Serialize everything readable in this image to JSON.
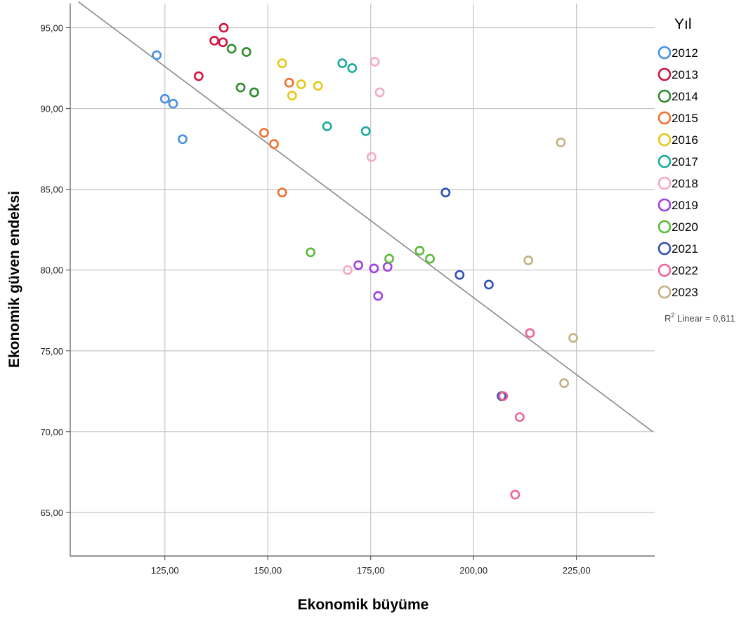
{
  "chart_data": {
    "type": "scatter",
    "xlabel": "Ekonomik büyüme",
    "ylabel": "Ekonomik güven endeksi",
    "xlim": [
      102,
      244
    ],
    "ylim": [
      62.3,
      96.5
    ],
    "xticks": [
      125,
      150,
      175,
      200,
      225
    ],
    "xtick_labels": [
      "125,00",
      "150,00",
      "175,00",
      "200,00",
      "225,00"
    ],
    "yticks": [
      65,
      70,
      75,
      80,
      85,
      90,
      95
    ],
    "ytick_labels": [
      "65,00",
      "70,00",
      "75,00",
      "80,00",
      "85,00",
      "90,00",
      "95,00"
    ],
    "grid": true,
    "legend": {
      "title": "Yıl",
      "position": "right"
    },
    "fit_line": {
      "type": "linear",
      "label_prefix": "R",
      "label_sup": "2",
      "label_rest": " Linear = 0,611",
      "start": [
        104,
        96.6
      ],
      "end": [
        243.5,
        70
      ]
    },
    "series": [
      {
        "name": "2012",
        "color": "#4a90e2",
        "points": [
          [
            123,
            93.3
          ],
          [
            125,
            90.6
          ],
          [
            127,
            90.3
          ],
          [
            129.3,
            88.1
          ]
        ]
      },
      {
        "name": "2013",
        "color": "#d0123d",
        "points": [
          [
            133.2,
            92
          ],
          [
            137,
            94.2
          ],
          [
            139.1,
            94.1
          ],
          [
            139.3,
            95
          ]
        ]
      },
      {
        "name": "2014",
        "color": "#2e8b2e",
        "points": [
          [
            141.2,
            93.7
          ],
          [
            143.4,
            91.3
          ],
          [
            144.8,
            93.5
          ],
          [
            146.7,
            91
          ]
        ]
      },
      {
        "name": "2015",
        "color": "#f07030",
        "points": [
          [
            149.1,
            88.5
          ],
          [
            151.5,
            87.8
          ],
          [
            153.5,
            84.8
          ],
          [
            155.2,
            91.6
          ]
        ]
      },
      {
        "name": "2016",
        "color": "#e6c81a",
        "points": [
          [
            153.5,
            92.8
          ],
          [
            155.9,
            90.8
          ],
          [
            158.1,
            91.5
          ],
          [
            162.2,
            91.4
          ]
        ]
      },
      {
        "name": "2017",
        "color": "#1aab9b",
        "points": [
          [
            164.4,
            88.9
          ],
          [
            168.1,
            92.8
          ],
          [
            170.5,
            92.5
          ],
          [
            173.8,
            88.6
          ]
        ]
      },
      {
        "name": "2018",
        "color": "#f5a9c8",
        "points": [
          [
            169.4,
            80
          ],
          [
            175.2,
            87
          ],
          [
            176,
            92.9
          ],
          [
            177.2,
            91
          ]
        ]
      },
      {
        "name": "2019",
        "color": "#a040e0",
        "points": [
          [
            172,
            80.3
          ],
          [
            175.8,
            80.1
          ],
          [
            176.8,
            78.4
          ],
          [
            179.1,
            80.2
          ]
        ]
      },
      {
        "name": "2020",
        "color": "#5abb3a",
        "points": [
          [
            160.4,
            81.1
          ],
          [
            179.5,
            80.7
          ],
          [
            186.9,
            81.2
          ],
          [
            189.4,
            80.7
          ]
        ]
      },
      {
        "name": "2021",
        "color": "#3050b0",
        "points": [
          [
            193.2,
            84.8
          ],
          [
            196.6,
            79.7
          ],
          [
            203.7,
            79.1
          ],
          [
            206.8,
            72.2
          ]
        ]
      },
      {
        "name": "2022",
        "color": "#f06595",
        "points": [
          [
            207.2,
            72.2
          ],
          [
            210.1,
            66.1
          ],
          [
            211.2,
            70.9
          ],
          [
            213.7,
            76.1
          ]
        ]
      },
      {
        "name": "2023",
        "color": "#c2b280",
        "points": [
          [
            213.3,
            80.6
          ],
          [
            221.2,
            87.9
          ],
          [
            222,
            73
          ],
          [
            224.2,
            75.8
          ]
        ]
      }
    ]
  }
}
